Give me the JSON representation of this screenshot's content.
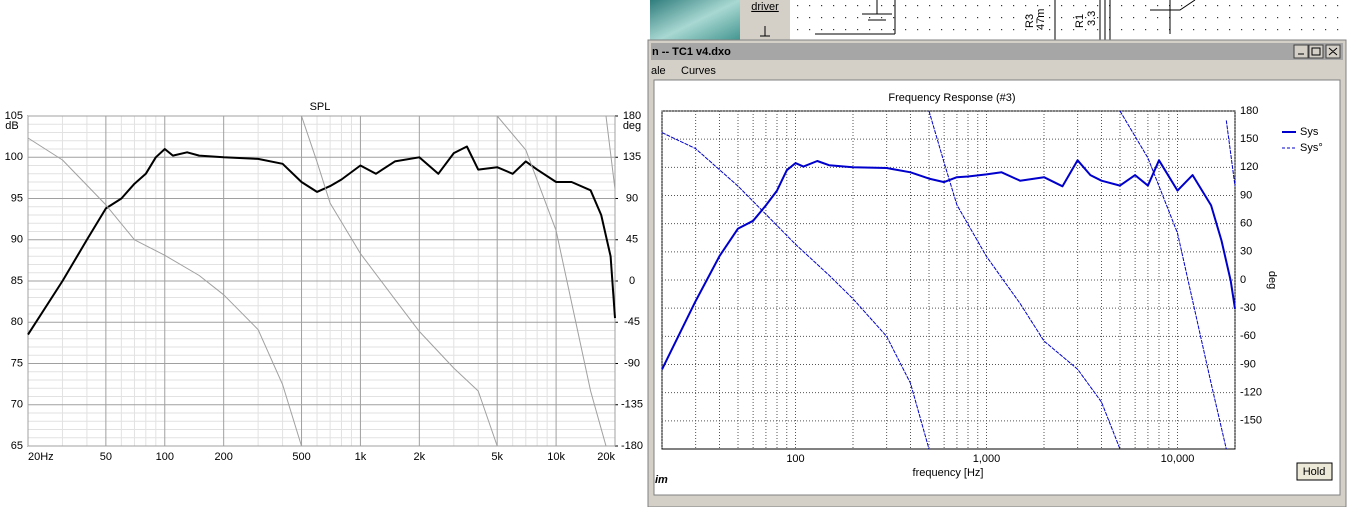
{
  "chart_data": [
    {
      "type": "line",
      "title": "SPL",
      "xscale": "log",
      "xlim": [
        20,
        20000
      ],
      "xticks": [
        {
          "value": 20,
          "label": "20Hz"
        },
        50,
        100,
        200,
        500,
        {
          "value": 1000,
          "label": "1k"
        },
        {
          "value": 2000,
          "label": "2k"
        },
        {
          "value": 5000,
          "label": "5k"
        },
        {
          "value": 10000,
          "label": "10k"
        },
        {
          "value": 20000,
          "label": "20k"
        }
      ],
      "xminor": [
        30,
        40,
        60,
        70,
        80,
        90,
        300,
        400,
        600,
        700,
        800,
        900,
        3000,
        4000,
        6000,
        7000,
        8000,
        9000
      ],
      "ylabel": "dB",
      "ylim": [
        65,
        105
      ],
      "yticks": [
        65,
        70,
        75,
        80,
        85,
        90,
        95,
        100,
        105
      ],
      "yminor": [
        66,
        67,
        68,
        69,
        71,
        72,
        73,
        74,
        76,
        77,
        78,
        79,
        81,
        82,
        83,
        84,
        86,
        87,
        88,
        89,
        91,
        92,
        93,
        94,
        96,
        97,
        98,
        99,
        101,
        102,
        103,
        104
      ],
      "y2label": "deg",
      "y2lim": [
        -180,
        180
      ],
      "y2ticks": [
        -180,
        -135,
        -90,
        -45,
        0,
        45,
        90,
        135,
        180
      ],
      "grid": true,
      "series": [
        {
          "color": "#000000",
          "x": [
            20,
            30,
            40,
            50,
            60,
            70,
            80,
            90,
            100,
            110,
            130,
            150,
            200,
            300,
            400,
            500,
            600,
            700,
            800,
            1000,
            1200,
            1500,
            2000,
            2500,
            3000,
            3500,
            4000,
            5000,
            6000,
            7000,
            8000,
            10000,
            12000,
            15000,
            17000,
            19000,
            20000
          ],
          "values": [
            78.5,
            85,
            90,
            93.8,
            95,
            96.8,
            98,
            100,
            101,
            100.2,
            100.6,
            100.2,
            100,
            99.8,
            99.2,
            97,
            95.8,
            96.5,
            97.3,
            99,
            98,
            99.5,
            100,
            98,
            100.5,
            101.3,
            98.5,
            98.8,
            98,
            99.5,
            98.5,
            97,
            97,
            96,
            93,
            88,
            80.5
          ]
        },
        {
          "color": "#a0a0a0",
          "axis": "y2",
          "x": [
            20,
            30,
            50,
            70,
            100,
            150,
            200,
            300,
            400,
            500,
            500,
            500,
            600,
            700,
            1000,
            1500,
            2000,
            3000,
            4000,
            5000,
            5000,
            5000,
            7000,
            10000,
            15000,
            18000,
            18000,
            18000,
            20000
          ],
          "values": [
            156,
            132,
            83,
            45,
            28,
            6,
            -15,
            -53,
            -113,
            -180,
            null,
            180,
            130,
            85,
            30,
            -20,
            -55,
            -95,
            -120,
            -180,
            null,
            180,
            143,
            55,
            -120,
            -180,
            null,
            180,
            100
          ]
        }
      ]
    },
    {
      "type": "line",
      "title": "Frequency Response (#3)",
      "xscale": "log",
      "xlim": [
        20,
        20000
      ],
      "xticks": [
        100,
        {
          "value": 1000,
          "label": "1,000"
        },
        {
          "value": 10000,
          "label": "10,000"
        }
      ],
      "xminor": [
        20,
        30,
        40,
        50,
        60,
        70,
        80,
        90,
        200,
        300,
        400,
        500,
        600,
        700,
        800,
        900,
        2000,
        3000,
        4000,
        5000,
        6000,
        7000,
        8000,
        9000,
        20000
      ],
      "xlabel": "frequency [Hz]",
      "ylim": [
        59,
        107
      ],
      "y2label": "deg",
      "y2lim": [
        -180,
        180
      ],
      "y2ticks": [
        -150,
        -120,
        -90,
        -60,
        -30,
        0,
        30,
        60,
        90,
        120,
        150,
        180
      ],
      "grid": true,
      "series": [
        {
          "name": "Sys",
          "color": "#0000cc",
          "x": [
            20,
            30,
            40,
            50,
            60,
            70,
            80,
            90,
            100,
            110,
            130,
            150,
            200,
            300,
            400,
            500,
            600,
            700,
            800,
            1000,
            1200,
            1500,
            2000,
            2500,
            3000,
            3500,
            4000,
            5000,
            6000,
            7000,
            8000,
            10000,
            12000,
            15000,
            17000,
            19000,
            20000
          ],
          "values": [
            70.3,
            80,
            86.4,
            90.3,
            91.4,
            93.6,
            95.7,
            98.6,
            99.6,
            99.1,
            99.9,
            99.3,
            99,
            98.9,
            98.3,
            97.4,
            96.9,
            97.6,
            97.7,
            98,
            98.3,
            97.1,
            97.6,
            96.3,
            100,
            97.9,
            97.1,
            96.4,
            97.9,
            96.4,
            100,
            95.7,
            97.9,
            93.6,
            88.6,
            82.9,
            78.9
          ]
        },
        {
          "name": "Sys°",
          "color": "#0000cc",
          "axis": "y2",
          "dash": true,
          "x": [
            20,
            30,
            50,
            70,
            100,
            150,
            200,
            300,
            400,
            500,
            500,
            500,
            600,
            700,
            1000,
            1500,
            2000,
            3000,
            4000,
            5000,
            5000,
            5000,
            7000,
            10000,
            15000,
            18000,
            18000,
            18000,
            20000
          ],
          "values": [
            157,
            140,
            100,
            70,
            38,
            5,
            -20,
            -60,
            -110,
            -180,
            null,
            180,
            125,
            80,
            25,
            -25,
            -65,
            -95,
            -130,
            -180,
            null,
            180,
            130,
            50,
            -110,
            -180,
            null,
            170,
            100
          ]
        }
      ]
    }
  ],
  "window": {
    "title": "n -- TC1 v4.dxo",
    "menu": [
      "ale",
      "Curves"
    ],
    "button": "Hold",
    "status": "im"
  },
  "schematic": {
    "driver": "driver",
    "labels": [
      "R3",
      "47m",
      "R1",
      "3.3"
    ]
  }
}
